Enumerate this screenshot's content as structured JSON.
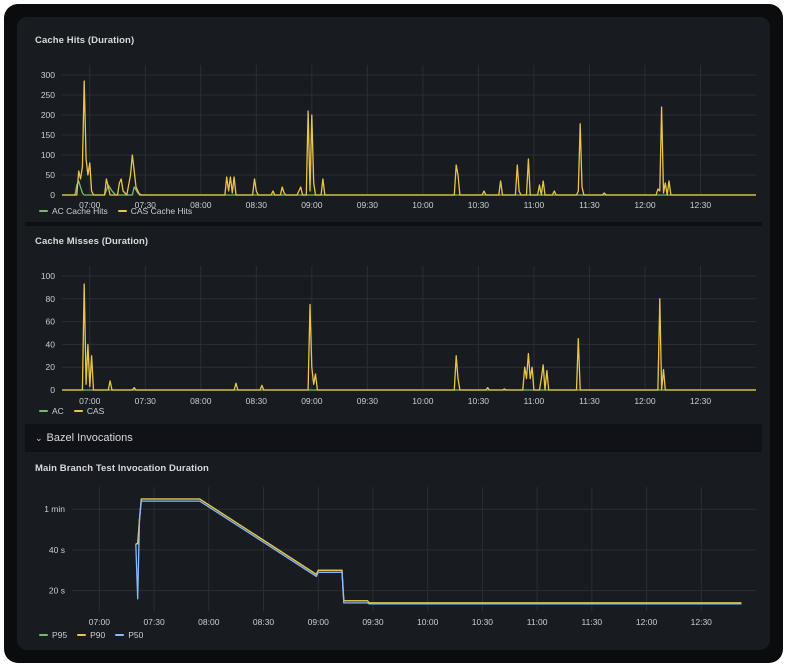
{
  "row": {
    "title": "Bazel Invocations",
    "chevron": "chevron-down-icon"
  },
  "colors": {
    "green": "#73bf69",
    "yellow": "#e8c54a",
    "blue": "#8ab8ff",
    "grid": "#2b2e33",
    "axis": "#c7d0d9"
  },
  "panels": [
    {
      "title": "Cache Hits (Duration)",
      "legend": [
        {
          "label": "AC Cache Hits",
          "color": "#73bf69"
        },
        {
          "label": "CAS Cache Hits",
          "color": "#e8c54a"
        }
      ],
      "chart_data": {
        "type": "line",
        "title": "Cache Hits (Duration)",
        "xlabel": "",
        "ylabel": "",
        "xticks": [
          "07:00",
          "07:30",
          "08:00",
          "08:30",
          "09:00",
          "09:30",
          "10:00",
          "10:30",
          "11:00",
          "11:30",
          "12:00",
          "12:30"
        ],
        "yticks": [
          "0",
          "50",
          "100",
          "150",
          "200",
          "250",
          "300"
        ],
        "ylim": [
          0,
          300
        ],
        "xrange_minutes": [
          405,
          780
        ],
        "series": [
          {
            "name": "AC Cache Hits",
            "color": "#73bf69",
            "points": [
              [
                405,
                0
              ],
              [
                412,
                0
              ],
              [
                413,
                25
              ],
              [
                414,
                35
              ],
              [
                415,
                20
              ],
              [
                416,
                5
              ],
              [
                417,
                0
              ],
              [
                428,
                0
              ],
              [
                430,
                25
              ],
              [
                432,
                10
              ],
              [
                434,
                0
              ],
              [
                443,
                0
              ],
              [
                444,
                20
              ],
              [
                446,
                5
              ],
              [
                448,
                0
              ],
              [
                780,
                0
              ]
            ]
          },
          {
            "name": "CAS Cache Hits",
            "color": "#e8c54a",
            "points": [
              [
                405,
                0
              ],
              [
                413,
                0
              ],
              [
                414,
                60
              ],
              [
                415,
                40
              ],
              [
                416,
                70
              ],
              [
                417,
                285
              ],
              [
                418,
                90
              ],
              [
                419,
                50
              ],
              [
                420,
                80
              ],
              [
                421,
                10
              ],
              [
                422,
                0
              ],
              [
                428,
                0
              ],
              [
                429,
                40
              ],
              [
                430,
                20
              ],
              [
                431,
                0
              ],
              [
                435,
                0
              ],
              [
                436,
                30
              ],
              [
                437,
                40
              ],
              [
                438,
                10
              ],
              [
                440,
                0
              ],
              [
                442,
                50
              ],
              [
                443,
                100
              ],
              [
                444,
                60
              ],
              [
                445,
                20
              ],
              [
                447,
                0
              ],
              [
                493,
                0
              ],
              [
                494,
                45
              ],
              [
                495,
                10
              ],
              [
                496,
                45
              ],
              [
                497,
                5
              ],
              [
                498,
                45
              ],
              [
                499,
                0
              ],
              [
                508,
                0
              ],
              [
                509,
                40
              ],
              [
                510,
                10
              ],
              [
                511,
                0
              ],
              [
                518,
                0
              ],
              [
                519,
                10
              ],
              [
                520,
                0
              ],
              [
                523,
                0
              ],
              [
                524,
                20
              ],
              [
                525,
                5
              ],
              [
                526,
                0
              ],
              [
                532,
                0
              ],
              [
                533,
                10
              ],
              [
                534,
                20
              ],
              [
                535,
                0
              ],
              [
                537,
                0
              ],
              [
                538,
                210
              ],
              [
                539,
                10
              ],
              [
                540,
                200
              ],
              [
                541,
                30
              ],
              [
                542,
                0
              ],
              [
                545,
                0
              ],
              [
                546,
                40
              ],
              [
                547,
                0
              ],
              [
                617,
                0
              ],
              [
                618,
                75
              ],
              [
                619,
                50
              ],
              [
                620,
                0
              ],
              [
                632,
                0
              ],
              [
                633,
                10
              ],
              [
                634,
                0
              ],
              [
                641,
                0
              ],
              [
                642,
                35
              ],
              [
                643,
                0
              ],
              [
                650,
                0
              ],
              [
                651,
                75
              ],
              [
                652,
                10
              ],
              [
                653,
                0
              ],
              [
                656,
                0
              ],
              [
                657,
                90
              ],
              [
                658,
                0
              ],
              [
                662,
                0
              ],
              [
                663,
                25
              ],
              [
                664,
                0
              ],
              [
                665,
                35
              ],
              [
                666,
                0
              ],
              [
                670,
                0
              ],
              [
                671,
                10
              ],
              [
                672,
                0
              ],
              [
                683,
                0
              ],
              [
                684,
                10
              ],
              [
                685,
                178
              ],
              [
                686,
                20
              ],
              [
                687,
                0
              ],
              [
                697,
                0
              ],
              [
                698,
                5
              ],
              [
                699,
                0
              ],
              [
                726,
                0
              ],
              [
                727,
                15
              ],
              [
                728,
                10
              ],
              [
                729,
                220
              ],
              [
                730,
                5
              ],
              [
                731,
                30
              ],
              [
                732,
                0
              ],
              [
                733,
                35
              ],
              [
                734,
                0
              ],
              [
                780,
                0
              ]
            ]
          }
        ]
      }
    },
    {
      "title": "Cache Misses (Duration)",
      "legend": [
        {
          "label": "AC",
          "color": "#73bf69"
        },
        {
          "label": "CAS",
          "color": "#e8c54a"
        }
      ],
      "chart_data": {
        "type": "line",
        "title": "Cache Misses (Duration)",
        "xlabel": "",
        "ylabel": "",
        "xticks": [
          "07:00",
          "07:30",
          "08:00",
          "08:30",
          "09:00",
          "09:30",
          "10:00",
          "10:30",
          "11:00",
          "11:30",
          "12:00",
          "12:30"
        ],
        "yticks": [
          "0",
          "20",
          "40",
          "60",
          "80",
          "100"
        ],
        "ylim": [
          0,
          100
        ],
        "xrange_minutes": [
          405,
          780
        ],
        "series": [
          {
            "name": "AC",
            "color": "#73bf69",
            "points": [
              [
                405,
                0
              ],
              [
                780,
                0
              ]
            ]
          },
          {
            "name": "CAS",
            "color": "#e8c54a",
            "points": [
              [
                405,
                0
              ],
              [
                416,
                0
              ],
              [
                417,
                93
              ],
              [
                418,
                5
              ],
              [
                419,
                40
              ],
              [
                420,
                3
              ],
              [
                421,
                30
              ],
              [
                422,
                0
              ],
              [
                430,
                0
              ],
              [
                431,
                8
              ],
              [
                432,
                0
              ],
              [
                443,
                0
              ],
              [
                444,
                2
              ],
              [
                445,
                0
              ],
              [
                498,
                0
              ],
              [
                499,
                6
              ],
              [
                500,
                0
              ],
              [
                512,
                0
              ],
              [
                513,
                4
              ],
              [
                514,
                0
              ],
              [
                538,
                0
              ],
              [
                539,
                75
              ],
              [
                540,
                20
              ],
              [
                541,
                5
              ],
              [
                542,
                14
              ],
              [
                543,
                0
              ],
              [
                617,
                0
              ],
              [
                618,
                30
              ],
              [
                619,
                10
              ],
              [
                620,
                0
              ],
              [
                634,
                0
              ],
              [
                635,
                2
              ],
              [
                636,
                0
              ],
              [
                643,
                0
              ],
              [
                644,
                1
              ],
              [
                645,
                0
              ],
              [
                654,
                0
              ],
              [
                655,
                20
              ],
              [
                656,
                10
              ],
              [
                657,
                32
              ],
              [
                658,
                10
              ],
              [
                659,
                20
              ],
              [
                660,
                0
              ],
              [
                663,
                0
              ],
              [
                664,
                10
              ],
              [
                665,
                22
              ],
              [
                666,
                0
              ],
              [
                667,
                17
              ],
              [
                668,
                0
              ],
              [
                683,
                0
              ],
              [
                684,
                45
              ],
              [
                685,
                0
              ],
              [
                727,
                0
              ],
              [
                728,
                80
              ],
              [
                729,
                0
              ],
              [
                730,
                18
              ],
              [
                731,
                0
              ],
              [
                780,
                0
              ]
            ]
          }
        ]
      }
    },
    {
      "title": "Main Branch Test Invocation Duration",
      "legend": [
        {
          "label": "P95",
          "color": "#73bf69"
        },
        {
          "label": "P90",
          "color": "#e8c54a"
        },
        {
          "label": "P50",
          "color": "#8ab8ff"
        }
      ],
      "chart_data": {
        "type": "line",
        "title": "Main Branch Test Invocation Duration",
        "xlabel": "",
        "ylabel": "",
        "xticks": [
          "07:00",
          "07:30",
          "08:00",
          "08:30",
          "09:00",
          "09:30",
          "10:00",
          "10:30",
          "11:00",
          "11:30",
          "12:00",
          "12:30"
        ],
        "yticks": [
          "20 s",
          "40 s",
          "1 min"
        ],
        "ytick_values": [
          20,
          40,
          60
        ],
        "ylim": [
          10,
          66
        ],
        "xrange_minutes": [
          405,
          780
        ],
        "series": [
          {
            "name": "P95",
            "color": "#73bf69",
            "points": [
              [
                440,
                43
              ],
              [
                441,
                43
              ],
              [
                442,
                55
              ],
              [
                443,
                65
              ],
              [
                475,
                65
              ],
              [
                539,
                28
              ],
              [
                540,
                30
              ],
              [
                553,
                30
              ],
              [
                554,
                15
              ],
              [
                567,
                15
              ],
              [
                568,
                14
              ],
              [
                772,
                14
              ]
            ]
          },
          {
            "name": "P90",
            "color": "#e8c54a",
            "points": [
              [
                440,
                43
              ],
              [
                441,
                43
              ],
              [
                442,
                55
              ],
              [
                443,
                65
              ],
              [
                475,
                65
              ],
              [
                539,
                28
              ],
              [
                540,
                30
              ],
              [
                553,
                30
              ],
              [
                554,
                15
              ],
              [
                567,
                15
              ],
              [
                568,
                14
              ],
              [
                772,
                14
              ]
            ]
          },
          {
            "name": "P50",
            "color": "#8ab8ff",
            "points": [
              [
                440,
                43
              ],
              [
                441,
                16
              ],
              [
                442,
                55
              ],
              [
                443,
                64
              ],
              [
                475,
                64
              ],
              [
                539,
                27
              ],
              [
                540,
                29
              ],
              [
                553,
                29
              ],
              [
                554,
                14
              ],
              [
                567,
                14
              ],
              [
                568,
                13.5
              ],
              [
                772,
                13.5
              ]
            ]
          }
        ]
      }
    }
  ]
}
